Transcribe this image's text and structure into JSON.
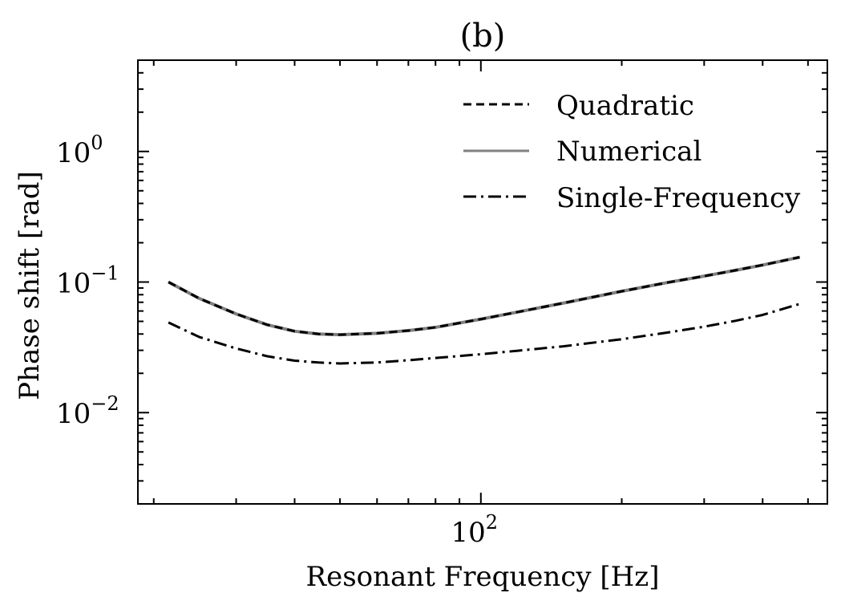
{
  "chart_data": {
    "type": "line",
    "title": "(b)",
    "xlabel": "Resonant Frequency [Hz]",
    "ylabel": "Phase shift [rad]",
    "xscale": "log",
    "yscale": "log",
    "xlim": [
      18.5,
      550
    ],
    "ylim": [
      0.002,
      5
    ],
    "grid": false,
    "legend_position": "top-right",
    "x_ticks": [
      {
        "value": 100,
        "base": "10",
        "exp": "2"
      }
    ],
    "y_ticks": [
      {
        "value": 1,
        "base": "10",
        "exp": "0"
      },
      {
        "value": 0.1,
        "base": "10",
        "exp": "−1"
      },
      {
        "value": 0.01,
        "base": "10",
        "exp": "−2"
      }
    ],
    "x": [
      21.5,
      25,
      30,
      35,
      40,
      45,
      50,
      60,
      70,
      80,
      100,
      120,
      150,
      200,
      250,
      300,
      350,
      400,
      480
    ],
    "series": [
      {
        "name": "Quadratic",
        "style": "dashed",
        "color": "#000000",
        "values": [
          0.1,
          0.075,
          0.057,
          0.047,
          0.042,
          0.04,
          0.0395,
          0.0405,
          0.0425,
          0.045,
          0.052,
          0.059,
          0.069,
          0.085,
          0.099,
          0.111,
          0.123,
          0.135,
          0.155
        ]
      },
      {
        "name": "Numerical",
        "style": "solid",
        "color": "#808080",
        "values": [
          0.1,
          0.075,
          0.057,
          0.047,
          0.042,
          0.04,
          0.0395,
          0.0405,
          0.0425,
          0.045,
          0.052,
          0.059,
          0.069,
          0.085,
          0.099,
          0.111,
          0.123,
          0.135,
          0.155
        ]
      },
      {
        "name": "Single-Frequency",
        "style": "dashdot",
        "color": "#000000",
        "values": [
          0.049,
          0.038,
          0.031,
          0.027,
          0.025,
          0.0242,
          0.0238,
          0.0242,
          0.0252,
          0.0262,
          0.028,
          0.0298,
          0.0322,
          0.0365,
          0.041,
          0.0455,
          0.0505,
          0.056,
          0.068
        ]
      }
    ]
  }
}
